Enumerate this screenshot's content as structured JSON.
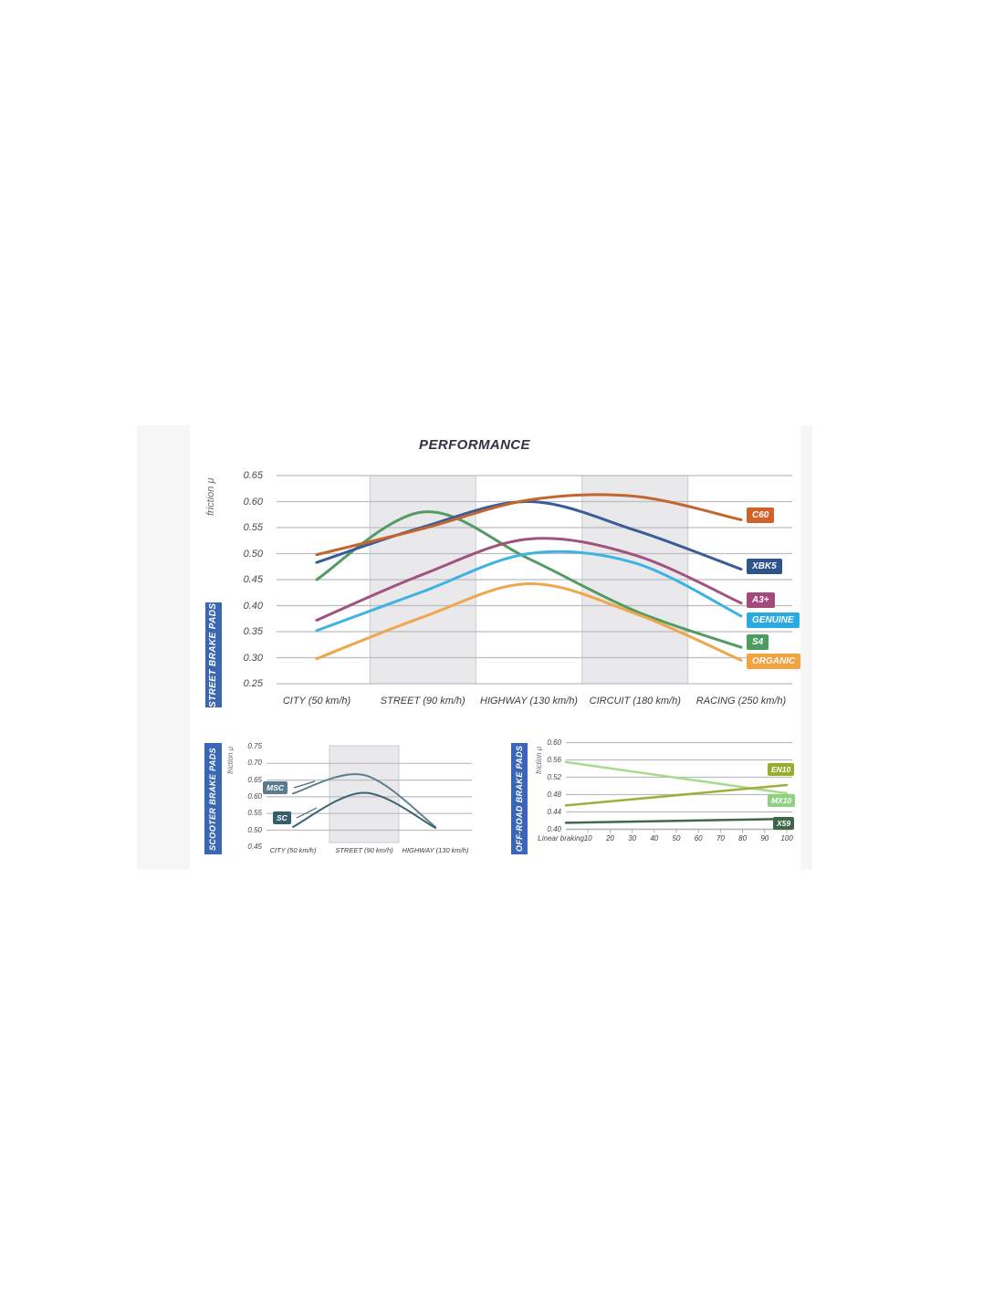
{
  "title": "PERFORMANCE",
  "chart_data": [
    {
      "type": "line",
      "sidebar": "STREET BRAKE PADS",
      "ylabel": "friction μ",
      "ylim": [
        0.25,
        0.65
      ],
      "grid": true,
      "legend_position": "right",
      "y_ticks": [
        "0.65",
        "0.60",
        "0.55",
        "0.50",
        "0.45",
        "0.40",
        "0.35",
        "0.30",
        "0.25"
      ],
      "categories": [
        "CITY (50 km/h)",
        "STREET (90 km/h)",
        "HIGHWAY (130 km/h)",
        "CIRCUIT (180 km/h)",
        "RACING (250 km/h)"
      ],
      "highlight_categories": [
        1,
        3
      ],
      "series": [
        {
          "name": "C60",
          "color": "#c2652e",
          "label_bg": "#d2622a",
          "values": [
            0.498,
            0.548,
            0.603,
            0.61,
            0.565
          ]
        },
        {
          "name": "XBK5",
          "color": "#3a5d99",
          "label_bg": "#2f538d",
          "values": [
            0.483,
            0.551,
            0.6,
            0.545,
            0.47
          ]
        },
        {
          "name": "A3+",
          "color": "#a0537e",
          "label_bg": "#a4497e",
          "values": [
            0.372,
            0.46,
            0.528,
            0.497,
            0.405
          ]
        },
        {
          "name": "GENUINE",
          "color": "#3eb3e3",
          "label_bg": "#29abe2",
          "values": [
            0.352,
            0.427,
            0.5,
            0.482,
            0.38
          ]
        },
        {
          "name": "S4",
          "color": "#549a63",
          "label_bg": "#4c9c60",
          "values": [
            0.45,
            0.58,
            0.49,
            0.39,
            0.32
          ]
        },
        {
          "name": "ORGANIC",
          "color": "#f0a64d",
          "label_bg": "#f2a23e",
          "values": [
            0.298,
            0.378,
            0.442,
            0.385,
            0.295
          ]
        }
      ]
    },
    {
      "type": "line",
      "sidebar": "SCOOTER BRAKE PADS",
      "ylabel": "friction μ",
      "ylim": [
        0.45,
        0.75
      ],
      "grid": true,
      "legend_position": "left",
      "y_ticks": [
        "0.75",
        "0.70",
        "0.65",
        "0.60",
        "0.55",
        "0.50",
        "0.45"
      ],
      "categories": [
        "CITY (50 km/h)",
        "STREET (90 km/h)",
        "HIGHWAY (130 km/h)"
      ],
      "highlight_categories": [
        1
      ],
      "series": [
        {
          "name": "MSC",
          "color": "#5f8090",
          "label_bg": "#5c7b8d",
          "values": [
            0.61,
            0.665,
            0.51
          ]
        },
        {
          "name": "SC",
          "color": "#3c6373",
          "label_bg": "#355e6f",
          "values": [
            0.51,
            0.612,
            0.507
          ]
        }
      ]
    },
    {
      "type": "line",
      "sidebar": "OFF-ROAD BRAKE PADS",
      "ylabel": "friction μ",
      "xlabel": "Linear braking",
      "ylim": [
        0.4,
        0.6
      ],
      "grid": true,
      "legend_position": "right",
      "y_ticks": [
        "0.60",
        "0.56",
        "0.52",
        "0.48",
        "0.44",
        "0.40"
      ],
      "x_ticks": [
        "10",
        "20",
        "30",
        "40",
        "50",
        "60",
        "70",
        "80",
        "90",
        "100"
      ],
      "x_range": [
        0,
        100
      ],
      "series": [
        {
          "name": "EN10",
          "color": "#9cb13c",
          "label_bg": "#9aac30",
          "values": [
            0.455,
            0.502
          ]
        },
        {
          "name": "MX10",
          "color": "#a8da8e",
          "label_bg": "#8ed180",
          "values": [
            0.555,
            0.483
          ]
        },
        {
          "name": "X59",
          "color": "#40684b",
          "label_bg": "#3e6749",
          "values": [
            0.415,
            0.424
          ]
        }
      ]
    }
  ]
}
